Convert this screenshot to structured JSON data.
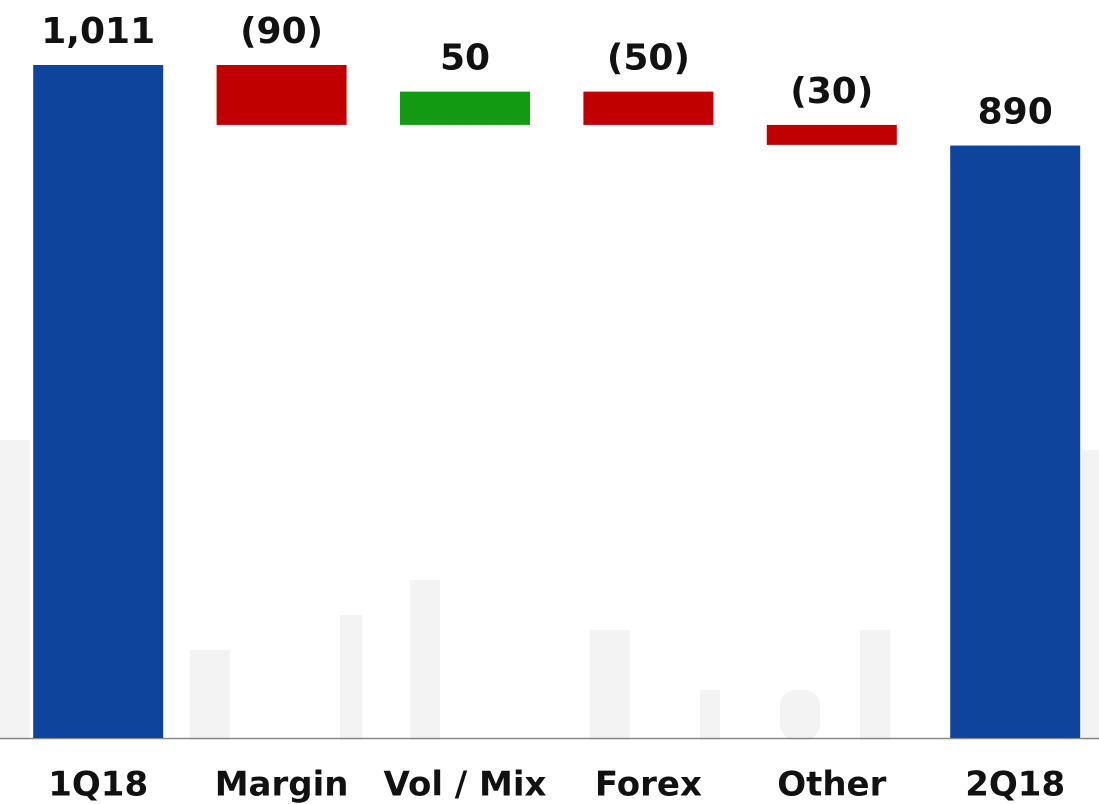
{
  "chart_data": {
    "type": "waterfall",
    "categories": [
      "1Q18",
      "Margin",
      "Vol / Mix",
      "Forex",
      "Other",
      "2Q18"
    ],
    "values": [
      1011,
      -90,
      50,
      -50,
      -30,
      890
    ],
    "value_labels": [
      "1,011",
      "(90)",
      "50",
      "(50)",
      "(30)",
      "890"
    ],
    "colors": {
      "total": "#0f449c",
      "increase": "#129a12",
      "decrease": "#c00000"
    }
  }
}
